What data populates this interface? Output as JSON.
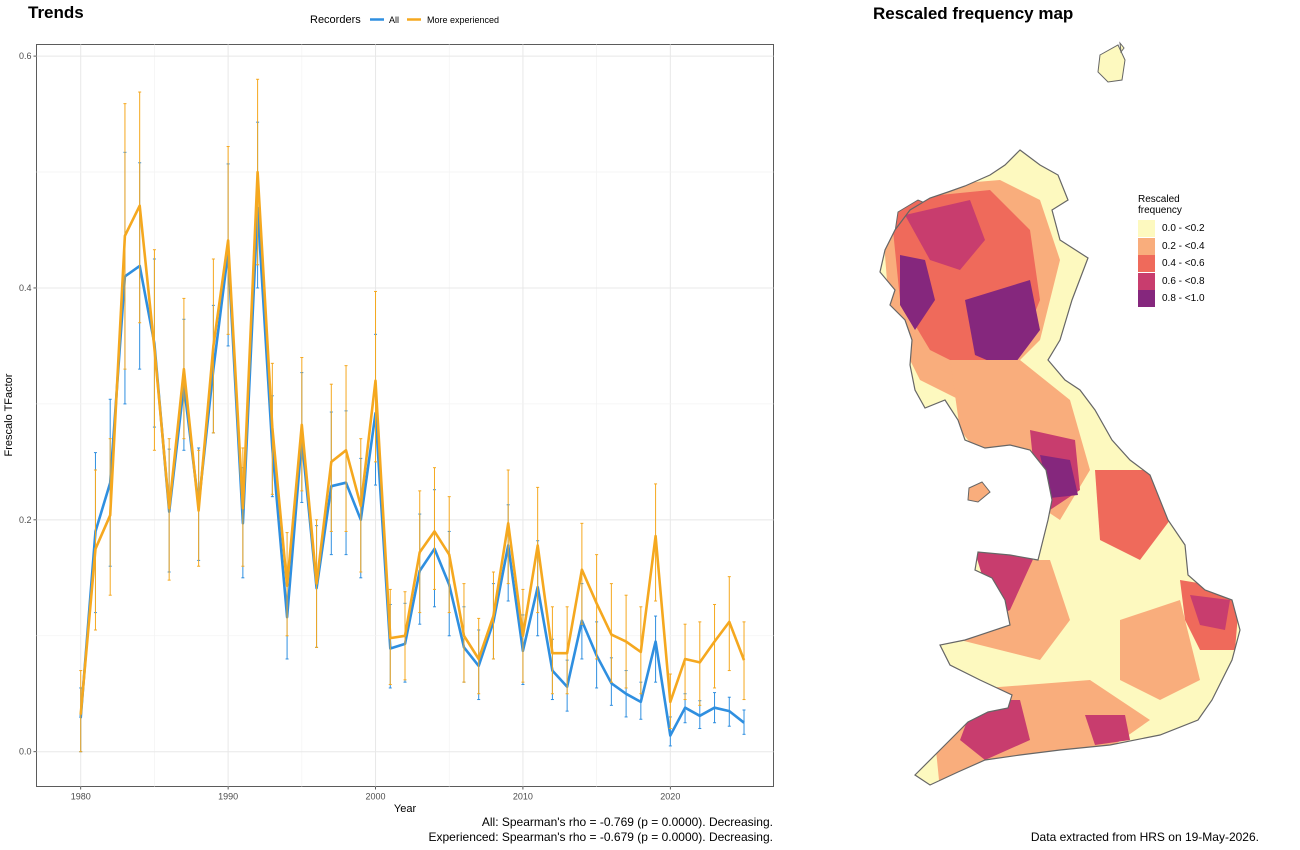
{
  "trends_title": "Trends",
  "map_title": "Rescaled frequency map",
  "legend_recorders_title": "Recorders",
  "stats_all": "All: Spearman's rho = -0.769 (p = 0.0000). Decreasing.",
  "stats_experienced": "Experienced: Spearman's rho = -0.679 (p = 0.0000). Decreasing.",
  "data_note": "Data extracted from HRS on 19-May-2026.",
  "map_legend": {
    "title_line1": "Rescaled",
    "title_line2": "frequency",
    "classes": [
      {
        "label": "0.0 - <0.2",
        "color": "#fdf9bf"
      },
      {
        "label": "0.2 - <0.4",
        "color": "#f9ad7c"
      },
      {
        "label": "0.4 - <0.6",
        "color": "#ef6a5b"
      },
      {
        "label": "0.6 - <0.8",
        "color": "#c83d6e"
      },
      {
        "label": "0.8 - <1.0",
        "color": "#85277d"
      }
    ]
  },
  "chart_data": {
    "type": "line",
    "xlabel": "Year",
    "ylabel": "Frescalo TFactor",
    "xlim": [
      1977,
      2027
    ],
    "ylim": [
      -0.03,
      0.61
    ],
    "x_ticks": [
      1980,
      1990,
      2000,
      2010,
      2020
    ],
    "y_ticks": [
      0.0,
      0.2,
      0.4,
      0.6
    ],
    "y_tick_labels": [
      "0.0",
      "0.2",
      "0.4",
      "0.6"
    ],
    "grid": true,
    "legend_position": "top",
    "x": [
      1980,
      1981,
      1982,
      1983,
      1984,
      1985,
      1986,
      1987,
      1988,
      1989,
      1990,
      1991,
      1992,
      1993,
      1994,
      1995,
      1996,
      1997,
      1998,
      1999,
      2000,
      2001,
      2002,
      2003,
      2004,
      2005,
      2006,
      2007,
      2008,
      2009,
      2010,
      2011,
      2012,
      2013,
      2014,
      2015,
      2016,
      2017,
      2018,
      2019,
      2020,
      2021,
      2022,
      2023,
      2024,
      2025
    ],
    "series": [
      {
        "name": "All",
        "color": "#2f8fe0",
        "values": [
          0.029,
          0.19,
          0.232,
          0.41,
          0.419,
          0.352,
          0.207,
          0.316,
          0.213,
          0.33,
          0.431,
          0.197,
          0.469,
          0.262,
          0.116,
          0.27,
          0.141,
          0.229,
          0.232,
          0.2,
          0.292,
          0.089,
          0.093,
          0.156,
          0.175,
          0.144,
          0.09,
          0.074,
          0.112,
          0.178,
          0.087,
          0.142,
          0.07,
          0.056,
          0.113,
          0.083,
          0.059,
          0.05,
          0.043,
          0.095,
          0.014,
          0.038,
          0.031,
          0.038,
          0.035,
          0.025
        ],
        "lower": [
          0.0,
          0.12,
          0.16,
          0.3,
          0.33,
          0.28,
          0.155,
          0.26,
          0.165,
          0.275,
          0.35,
          0.15,
          0.4,
          0.22,
          0.08,
          0.215,
          0.09,
          0.17,
          0.17,
          0.15,
          0.23,
          0.055,
          0.06,
          0.11,
          0.125,
          0.1,
          0.06,
          0.045,
          0.08,
          0.13,
          0.058,
          0.1,
          0.045,
          0.035,
          0.08,
          0.055,
          0.04,
          0.03,
          0.028,
          0.06,
          0.005,
          0.025,
          0.02,
          0.025,
          0.022,
          0.015
        ],
        "upper": [
          0.055,
          0.258,
          0.304,
          0.517,
          0.508,
          0.425,
          0.261,
          0.373,
          0.262,
          0.385,
          0.507,
          0.245,
          0.543,
          0.307,
          0.155,
          0.327,
          0.195,
          0.293,
          0.294,
          0.253,
          0.36,
          0.127,
          0.128,
          0.205,
          0.226,
          0.19,
          0.125,
          0.105,
          0.145,
          0.213,
          0.118,
          0.182,
          0.097,
          0.079,
          0.145,
          0.112,
          0.081,
          0.07,
          0.06,
          0.117,
          0.03,
          0.05,
          0.044,
          0.051,
          0.047,
          0.036
        ]
      },
      {
        "name": "More experienced",
        "color": "#f5a81f",
        "values": [
          0.032,
          0.175,
          0.204,
          0.445,
          0.471,
          0.348,
          0.21,
          0.33,
          0.208,
          0.35,
          0.441,
          0.21,
          0.5,
          0.28,
          0.143,
          0.282,
          0.145,
          0.25,
          0.26,
          0.212,
          0.32,
          0.098,
          0.1,
          0.172,
          0.19,
          0.17,
          0.1,
          0.08,
          0.117,
          0.197,
          0.1,
          0.178,
          0.085,
          0.085,
          0.157,
          0.128,
          0.101,
          0.095,
          0.086,
          0.186,
          0.043,
          0.08,
          0.077,
          0.095,
          0.112,
          0.079
        ],
        "lower": [
          0.0,
          0.105,
          0.135,
          0.33,
          0.37,
          0.26,
          0.148,
          0.27,
          0.16,
          0.275,
          0.36,
          0.16,
          0.42,
          0.222,
          0.1,
          0.225,
          0.09,
          0.19,
          0.19,
          0.155,
          0.25,
          0.058,
          0.062,
          0.12,
          0.14,
          0.12,
          0.06,
          0.05,
          0.08,
          0.145,
          0.06,
          0.12,
          0.05,
          0.05,
          0.11,
          0.08,
          0.06,
          0.055,
          0.05,
          0.13,
          0.02,
          0.045,
          0.04,
          0.055,
          0.07,
          0.045
        ],
        "upper": [
          0.07,
          0.243,
          0.27,
          0.559,
          0.569,
          0.433,
          0.27,
          0.391,
          0.26,
          0.425,
          0.522,
          0.262,
          0.58,
          0.335,
          0.189,
          0.34,
          0.2,
          0.317,
          0.333,
          0.27,
          0.397,
          0.14,
          0.138,
          0.225,
          0.245,
          0.22,
          0.145,
          0.115,
          0.155,
          0.243,
          0.14,
          0.228,
          0.125,
          0.125,
          0.197,
          0.17,
          0.145,
          0.135,
          0.125,
          0.231,
          0.067,
          0.11,
          0.112,
          0.127,
          0.151,
          0.112
        ]
      }
    ]
  }
}
